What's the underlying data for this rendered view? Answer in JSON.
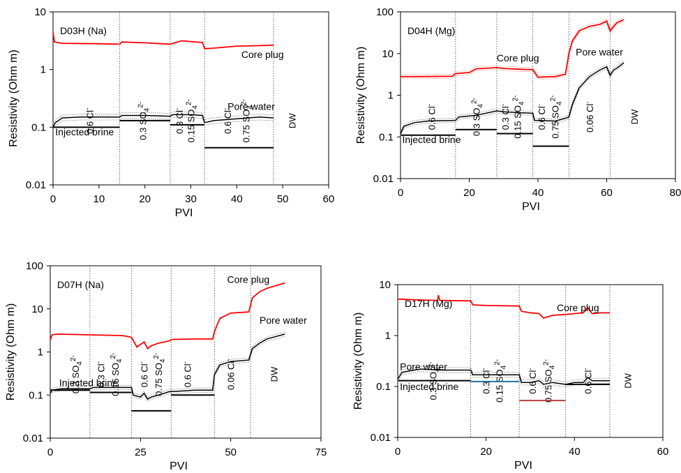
{
  "chart_data": [
    {
      "type": "line",
      "title": "D03H (Na)",
      "xlabel": "PVI",
      "ylabel": "Resistivity (Ohm m)",
      "yscale": "log",
      "xlim": [
        0,
        60
      ],
      "ylim": [
        0.01,
        10
      ],
      "xticks": [
        0,
        10,
        20,
        30,
        40,
        50,
        60
      ],
      "yticks": [
        0.01,
        0.1,
        1,
        10
      ],
      "ytick_labels": [
        "0.01",
        "0.1",
        "1",
        "10"
      ],
      "zone_boundaries": [
        14.5,
        25.5,
        33,
        48
      ],
      "zone_labels": [
        "0.6 Cl⁻",
        "0.3 SO₄²⁻",
        "0.3 Cl⁻",
        "0.15 SO₄²⁻",
        "0.6 Cl⁻",
        "0.75 SO₄²⁻",
        "DW"
      ],
      "zone_label_x": [
        8,
        19.5,
        27.5,
        30,
        38,
        42,
        52
      ],
      "annotations": [
        {
          "text": "Core plug",
          "x": 41,
          "y": 1.6
        },
        {
          "text": "Pore water",
          "x": 38,
          "y": 0.2
        },
        {
          "text": "Injected brine",
          "x": 0.5,
          "y": 0.072
        }
      ],
      "series": [
        {
          "name": "Core plug",
          "color": "#ff0000",
          "x": [
            0,
            0.3,
            2,
            10,
            14.5,
            15,
            20,
            25.5,
            28,
            30,
            32.5,
            33,
            35,
            40,
            45,
            48
          ],
          "y": [
            4.5,
            3.0,
            2.85,
            2.8,
            2.75,
            3.0,
            2.9,
            2.75,
            3.15,
            3.05,
            2.95,
            2.3,
            2.35,
            2.55,
            2.6,
            2.65
          ]
        },
        {
          "name": "Pore water",
          "color": "#000000",
          "x": [
            0,
            0.5,
            2,
            6,
            14.5,
            15,
            20,
            25.5,
            26,
            30,
            32.5,
            33,
            35,
            40,
            45,
            48
          ],
          "y": [
            0.1,
            0.12,
            0.145,
            0.15,
            0.15,
            0.16,
            0.16,
            0.155,
            0.165,
            0.165,
            0.16,
            0.12,
            0.13,
            0.14,
            0.15,
            0.145
          ]
        }
      ],
      "brine_steps": [
        {
          "x0": 0,
          "x1": 14.5,
          "y": 0.1
        },
        {
          "x0": 14.5,
          "x1": 25.5,
          "y": 0.13
        },
        {
          "x0": 25.5,
          "x1": 33,
          "y": 0.11
        },
        {
          "x0": 33,
          "x1": 48,
          "y": 0.044
        }
      ]
    },
    {
      "type": "line",
      "title": "D04H (Mg)",
      "xlabel": "PVI",
      "ylabel": "Resistivity (Ohm m)",
      "yscale": "log",
      "xlim": [
        0,
        80
      ],
      "ylim": [
        0.01,
        100
      ],
      "xticks": [
        0,
        20,
        40,
        60,
        80
      ],
      "yticks": [
        0.01,
        0.1,
        1,
        10,
        100
      ],
      "ytick_labels": [
        "0.01",
        "0.1",
        "1",
        "10",
        "100"
      ],
      "zone_boundaries": [
        16,
        28,
        38.5,
        49,
        61
      ],
      "zone_labels": [
        "0.6 Cl⁻",
        "0.3 SO₄²⁻",
        "0.3 Cl⁻",
        "0.15 SO₄²⁻",
        "0.6 Cl⁻",
        "0.75 SO₄²⁻",
        "0.06 Cl⁻",
        "DW"
      ],
      "zone_label_x": [
        9,
        22,
        30.5,
        34,
        41,
        45,
        55,
        68
      ],
      "annotations": [
        {
          "text": "Core plug",
          "x": 28,
          "y": 6.5
        },
        {
          "text": "Pore water",
          "x": 51,
          "y": 9
        },
        {
          "text": "Injected brine",
          "x": 0.5,
          "y": 0.072
        }
      ],
      "series": [
        {
          "name": "Core plug",
          "color": "#ff0000",
          "x": [
            0,
            5,
            15,
            16,
            20,
            22,
            28,
            30,
            35,
            38.5,
            40,
            45,
            48,
            49,
            50,
            52,
            55,
            58,
            60,
            61,
            62,
            63,
            65
          ],
          "y": [
            2.8,
            2.8,
            2.85,
            3.3,
            3.5,
            4.3,
            4.6,
            4.4,
            4.2,
            4.1,
            2.7,
            2.8,
            3.2,
            10,
            20,
            35,
            45,
            50,
            60,
            35,
            45,
            55,
            65
          ]
        },
        {
          "name": "Pore water",
          "color": "#000000",
          "x": [
            0,
            1,
            4,
            8,
            16,
            17,
            22,
            28,
            30,
            35,
            38.5,
            39,
            45,
            48,
            49,
            50,
            52,
            55,
            58,
            60,
            61,
            62,
            63,
            65
          ],
          "y": [
            0.12,
            0.18,
            0.22,
            0.24,
            0.25,
            0.3,
            0.33,
            0.42,
            0.4,
            0.38,
            0.37,
            0.25,
            0.24,
            0.28,
            0.3,
            0.6,
            1.5,
            2.8,
            4,
            4.8,
            3,
            4,
            4.5,
            6
          ]
        }
      ],
      "brine_steps": [
        {
          "x0": 0,
          "x1": 16,
          "y": 0.11
        },
        {
          "x0": 16,
          "x1": 28,
          "y": 0.15
        },
        {
          "x0": 28,
          "x1": 38.5,
          "y": 0.12
        },
        {
          "x0": 38.5,
          "x1": 49,
          "y": 0.06
        }
      ]
    },
    {
      "type": "line",
      "title": "D07H (Na)",
      "xlabel": "PVI",
      "ylabel": "Resistivity (Ohm m)",
      "yscale": "log",
      "xlim": [
        0,
        75
      ],
      "ylim": [
        0.01,
        100
      ],
      "xticks": [
        0,
        25,
        50,
        75
      ],
      "yticks": [
        0.01,
        0.1,
        1,
        10,
        100
      ],
      "ytick_labels": [
        "0.01",
        "0.1",
        "1",
        "10",
        "100"
      ],
      "zone_boundaries": [
        11,
        22.5,
        33.5,
        45.5,
        55.5
      ],
      "zone_labels": [
        "0.3 SO₄²⁻",
        "0.3 Cl⁻",
        "0.15 SO₄²⁻",
        "0.6 Cl⁻",
        "0.75 SO₄²⁻",
        "0.6 Cl⁻",
        "0.06 Cl⁻",
        "DW"
      ],
      "zone_label_x": [
        7,
        14,
        18,
        26,
        30,
        38,
        50,
        62
      ],
      "annotations": [
        {
          "text": "Core plug",
          "x": 49,
          "y": 40
        },
        {
          "text": "Pore water",
          "x": 58,
          "y": 4.5
        },
        {
          "text": "Injected brine",
          "x": 2.5,
          "y": 0.16
        }
      ],
      "series": [
        {
          "name": "Core plug",
          "color": "#ff0000",
          "x": [
            0,
            0.5,
            2,
            10,
            20,
            22.5,
            24,
            25,
            26,
            27,
            28,
            30,
            33,
            33.5,
            40,
            45,
            45.5,
            47,
            50,
            55,
            56,
            58,
            60,
            65
          ],
          "y": [
            1.9,
            2.5,
            2.6,
            2.5,
            2.4,
            2.2,
            1.3,
            1.5,
            1.7,
            1.2,
            1.4,
            1.6,
            1.8,
            1.95,
            2,
            2,
            3,
            6,
            8,
            8.5,
            18,
            25,
            30,
            40
          ]
        },
        {
          "name": "Pore water",
          "color": "#000000",
          "x": [
            0,
            0.5,
            3,
            11,
            12,
            22.5,
            23,
            25,
            26,
            27,
            28,
            30,
            33,
            33.5,
            40,
            45,
            45.5,
            47,
            50,
            55,
            56,
            58,
            60,
            65
          ],
          "y": [
            0.11,
            0.13,
            0.14,
            0.14,
            0.15,
            0.15,
            0.1,
            0.09,
            0.11,
            0.08,
            0.09,
            0.1,
            0.12,
            0.12,
            0.13,
            0.13,
            0.3,
            0.5,
            0.6,
            0.65,
            1.2,
            1.6,
            2,
            2.6
          ]
        }
      ],
      "brine_steps": [
        {
          "x0": 0,
          "x1": 11,
          "y": 0.13
        },
        {
          "x0": 11,
          "x1": 22.5,
          "y": 0.115
        },
        {
          "x0": 22.5,
          "x1": 33.5,
          "y": 0.043
        },
        {
          "x0": 33.5,
          "x1": 45.5,
          "y": 0.1
        }
      ]
    },
    {
      "type": "line",
      "title": "D17H (Mg)",
      "xlabel": "PVI",
      "ylabel": "Resistivity (Ohm m)",
      "yscale": "log",
      "xlim": [
        0,
        60
      ],
      "ylim": [
        0.01,
        10
      ],
      "xticks": [
        0,
        20,
        40,
        60
      ],
      "yticks": [
        0.01,
        0.1,
        1,
        10
      ],
      "ytick_labels": [
        "0.01",
        "0.1",
        "1",
        "10"
      ],
      "zone_boundaries": [
        16.5,
        27.5,
        38,
        48
      ],
      "zone_labels": [
        "0.3 SO₄²⁻",
        "0.3 Cl⁻",
        "0.15 SO₄²⁻",
        "0.6 Cl⁻",
        "0.75 SO₄²⁻",
        "0.6 Cl⁻",
        "DW"
      ],
      "zone_label_x": [
        8,
        20,
        23,
        30.5,
        34,
        43,
        52
      ],
      "annotations": [
        {
          "text": "Core plug",
          "x": 36,
          "y": 3
        },
        {
          "text": "Pore water",
          "x": 0.5,
          "y": 0.21
        },
        {
          "text": "Injected brine",
          "x": 0.5,
          "y": 0.085
        }
      ],
      "series": [
        {
          "name": "Core plug",
          "color": "#ff0000",
          "x": [
            0,
            5,
            9,
            9.2,
            9.5,
            16.5,
            17,
            20,
            27.5,
            28,
            30,
            32,
            33,
            35,
            38,
            40,
            42,
            43,
            44,
            46,
            48
          ],
          "y": [
            5.2,
            5,
            4.9,
            6.2,
            4.9,
            4.8,
            4,
            3.9,
            3.8,
            3,
            2.8,
            2.7,
            2.2,
            2.5,
            2.6,
            2.7,
            2.8,
            3.5,
            2.7,
            2.8,
            2.8
          ]
        },
        {
          "name": "Pore water",
          "color": "#000000",
          "x": [
            0,
            1,
            5,
            10,
            16.5,
            17,
            20,
            27.5,
            28,
            30,
            32,
            33,
            35,
            38,
            40,
            42,
            43,
            44,
            46,
            48
          ],
          "y": [
            0.14,
            0.19,
            0.22,
            0.21,
            0.21,
            0.17,
            0.17,
            0.17,
            0.12,
            0.12,
            0.13,
            0.11,
            0.12,
            0.11,
            0.12,
            0.12,
            0.15,
            0.13,
            0.13,
            0.13
          ]
        }
      ],
      "brine_steps": [
        {
          "x0": 0,
          "x1": 16.5,
          "y": 0.13,
          "color": "#000000"
        },
        {
          "x0": 16.5,
          "x1": 27.5,
          "y": 0.125,
          "color": "#1f6f9f"
        },
        {
          "x0": 27.5,
          "x1": 38,
          "y": 0.053,
          "color": "#b04040"
        },
        {
          "x0": 38,
          "x1": 48,
          "y": 0.11,
          "color": "#000000"
        }
      ]
    }
  ]
}
